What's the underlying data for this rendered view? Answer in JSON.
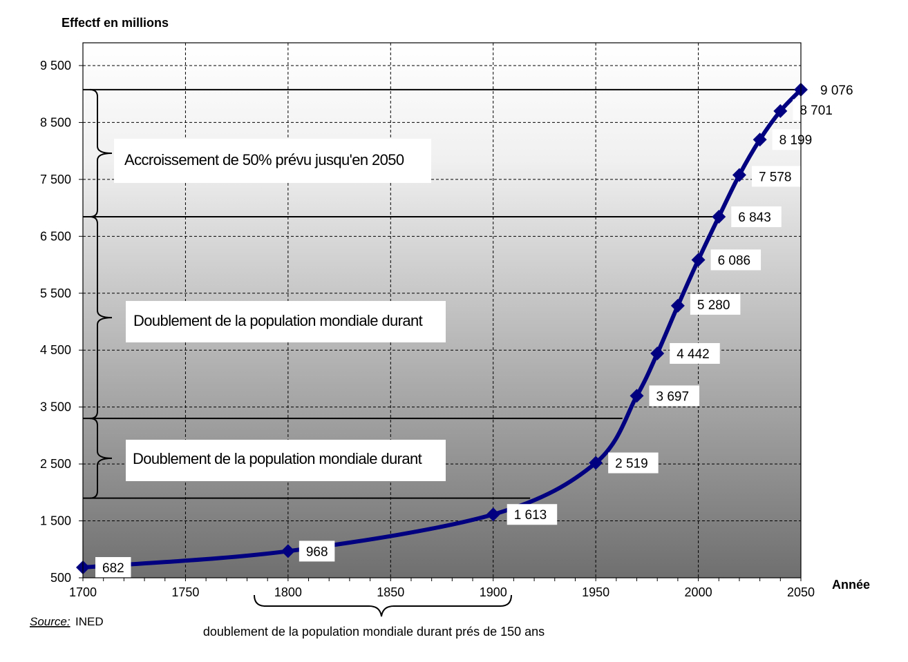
{
  "chart_data": {
    "type": "line",
    "ylabel": "Effectf en millions",
    "xlabel": "Année",
    "xlim": [
      1700,
      2050
    ],
    "ylim": [
      500,
      9900
    ],
    "x_ticks": [
      "1700",
      "1750",
      "1800",
      "1850",
      "1900",
      "1950",
      "2000",
      "2050"
    ],
    "y_ticks": [
      "500",
      "1 500",
      "2 500",
      "3 500",
      "4 500",
      "5 500",
      "6 500",
      "7 500",
      "8 500",
      "9 500"
    ],
    "grid": true,
    "series": [
      {
        "color": "#000080",
        "x": [
          1700,
          1800,
          1900,
          1950,
          1970,
          1980,
          1990,
          2000,
          2010,
          2020,
          2030,
          2040,
          2050
        ],
        "values": [
          682,
          968,
          1613,
          2519,
          3697,
          4442,
          5280,
          6086,
          6843,
          7578,
          8199,
          8701,
          9076
        ],
        "labels": [
          "682",
          "968",
          "1 613",
          "2 519",
          "3 697",
          "4 442",
          "5 280",
          "6 086",
          "6 843",
          "7 578",
          "8 199",
          "8 701",
          "9 076"
        ]
      }
    ],
    "annotations": [
      {
        "text": "Accroissement de 50% prévu jusqu'en 2050"
      },
      {
        "text": "Doublement de la population mondiale durant"
      },
      {
        "text": "Doublement de la population mondiale durant"
      },
      {
        "text": "doublement  de la population  mondiale  durant  prés de 150 ans"
      }
    ],
    "source_label": "Source:",
    "source_value": "INED"
  }
}
